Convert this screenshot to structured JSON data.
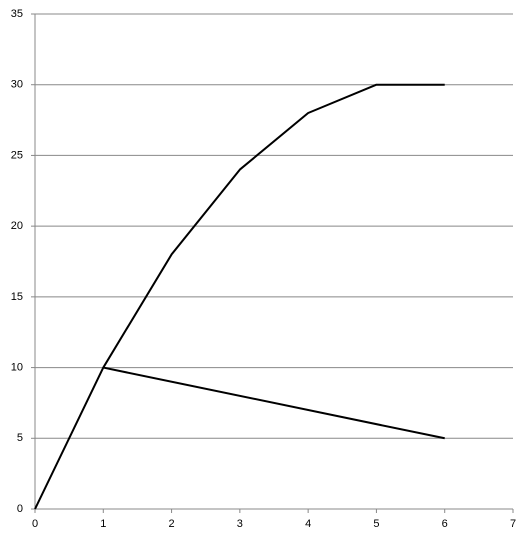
{
  "chart_data": {
    "type": "line",
    "series": [
      {
        "color": "#000000",
        "x": [
          0,
          1,
          2,
          3,
          4,
          5,
          6
        ],
        "values": [
          0,
          10,
          18,
          24,
          28,
          30,
          30
        ]
      },
      {
        "color": "#000000",
        "x": [
          1,
          6
        ],
        "values": [
          10,
          5
        ]
      }
    ],
    "xlim": [
      0,
      7
    ],
    "ylim": [
      0,
      35
    ],
    "xticks": [
      0,
      1,
      2,
      3,
      4,
      5,
      6,
      7
    ],
    "yticks": [
      0,
      5,
      10,
      15,
      20,
      25,
      30,
      35
    ],
    "grid": true
  }
}
